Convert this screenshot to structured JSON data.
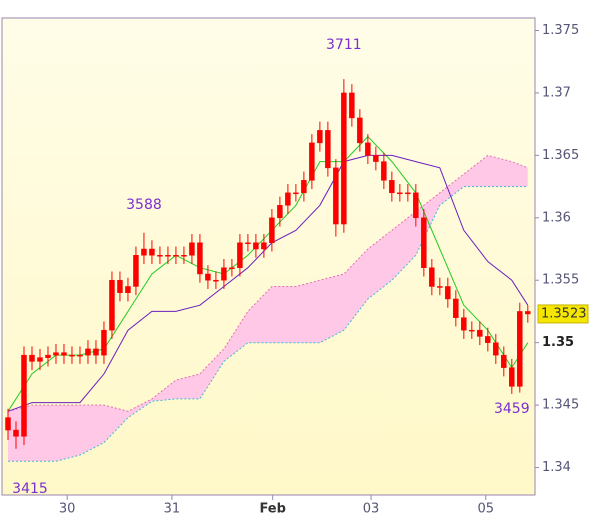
{
  "chart_data": {
    "type": "candlestick",
    "xlim": [
      -0.75,
      65.9
    ],
    "ylim": [
      1.3378,
      1.376
    ],
    "yticks": [
      1.34,
      1.345,
      1.35,
      1.355,
      1.36,
      1.365,
      1.37,
      1.375
    ],
    "bold_ytick": 1.35,
    "xticks": [
      {
        "value": 7.4,
        "label": "30"
      },
      {
        "value": 20.5,
        "label": "31"
      },
      {
        "value": 33.1,
        "label": "Feb"
      },
      {
        "value": 45.4,
        "label": "03"
      },
      {
        "value": 59.75,
        "label": "05"
      }
    ],
    "bold_xtick": "Feb",
    "candle_color": "#ff0000",
    "open": [
      1.344,
      1.343,
      1.3425,
      1.349,
      1.3485,
      1.3488,
      1.349,
      1.3492,
      1.349,
      1.349,
      1.349,
      1.3495,
      1.349,
      1.351,
      1.355,
      1.354,
      1.3545,
      1.357,
      1.3575,
      1.357,
      1.357,
      1.357,
      1.357,
      1.357,
      1.358,
      1.3555,
      1.355,
      1.355,
      1.356,
      1.356,
      1.358,
      1.358,
      1.3575,
      1.358,
      1.36,
      1.361,
      1.362,
      1.362,
      1.363,
      1.366,
      1.367,
      1.364,
      1.3595,
      1.37,
      1.368,
      1.366,
      1.365,
      1.3645,
      1.363,
      1.362,
      1.362,
      1.362,
      1.36,
      1.356,
      1.3545,
      1.3545,
      1.3535,
      1.352,
      1.351,
      1.351,
      1.3505,
      1.35,
      1.349,
      1.348,
      1.3465,
      1.3525
    ],
    "high": [
      1.3447,
      1.3437,
      1.3497,
      1.3497,
      1.3495,
      1.3497,
      1.3499,
      1.3499,
      1.3497,
      1.3497,
      1.3502,
      1.3502,
      1.3517,
      1.3557,
      1.3557,
      1.3552,
      1.3577,
      1.3588,
      1.3582,
      1.3577,
      1.3577,
      1.3577,
      1.3577,
      1.3587,
      1.3587,
      1.3562,
      1.3557,
      1.3567,
      1.3567,
      1.3587,
      1.3587,
      1.3587,
      1.3587,
      1.3607,
      1.3617,
      1.3627,
      1.3627,
      1.3637,
      1.3667,
      1.3677,
      1.3677,
      1.3647,
      1.3711,
      1.3707,
      1.3687,
      1.3667,
      1.3657,
      1.3652,
      1.3637,
      1.3627,
      1.3627,
      1.3627,
      1.3607,
      1.3567,
      1.3552,
      1.3552,
      1.3542,
      1.3527,
      1.3517,
      1.3517,
      1.3512,
      1.3507,
      1.3497,
      1.3487,
      1.3532,
      1.353
    ],
    "low": [
      1.3422,
      1.3415,
      1.3418,
      1.3478,
      1.3478,
      1.3481,
      1.3483,
      1.3483,
      1.3483,
      1.3483,
      1.3483,
      1.3483,
      1.3483,
      1.3503,
      1.3533,
      1.3533,
      1.3538,
      1.3563,
      1.3563,
      1.3563,
      1.3563,
      1.3563,
      1.3563,
      1.3563,
      1.3548,
      1.3543,
      1.3543,
      1.3543,
      1.3553,
      1.3553,
      1.3573,
      1.3568,
      1.3568,
      1.3573,
      1.3593,
      1.3603,
      1.3613,
      1.3613,
      1.3623,
      1.3653,
      1.3633,
      1.3585,
      1.3588,
      1.3673,
      1.3653,
      1.3643,
      1.3638,
      1.3623,
      1.3613,
      1.3613,
      1.3613,
      1.3593,
      1.3553,
      1.3538,
      1.3538,
      1.3528,
      1.3513,
      1.3503,
      1.3503,
      1.3498,
      1.3493,
      1.3483,
      1.3473,
      1.3459,
      1.346,
      1.3516
    ],
    "close": [
      1.343,
      1.3425,
      1.349,
      1.3485,
      1.3488,
      1.349,
      1.3492,
      1.349,
      1.349,
      1.349,
      1.3495,
      1.349,
      1.351,
      1.355,
      1.354,
      1.3545,
      1.357,
      1.3575,
      1.357,
      1.357,
      1.357,
      1.357,
      1.357,
      1.358,
      1.3555,
      1.355,
      1.355,
      1.356,
      1.356,
      1.358,
      1.358,
      1.3575,
      1.358,
      1.36,
      1.361,
      1.362,
      1.362,
      1.363,
      1.366,
      1.367,
      1.364,
      1.3595,
      1.37,
      1.368,
      1.366,
      1.365,
      1.3645,
      1.363,
      1.362,
      1.362,
      1.362,
      1.36,
      1.356,
      1.3545,
      1.3545,
      1.3535,
      1.352,
      1.351,
      1.351,
      1.3505,
      1.35,
      1.349,
      1.348,
      1.3465,
      1.3525,
      1.3523
    ],
    "cloud": {
      "color": "#ffc8e6",
      "upper": {
        "color": "#e070b0",
        "x": [
          0,
          3,
          6,
          9,
          12,
          15,
          18,
          21,
          24,
          27,
          30,
          33,
          36,
          39,
          42,
          45,
          48,
          51,
          54,
          57,
          60,
          63,
          65
        ],
        "values": [
          1.3445,
          1.345,
          1.345,
          1.345,
          1.345,
          1.3445,
          1.3455,
          1.347,
          1.3475,
          1.3495,
          1.3525,
          1.3545,
          1.3545,
          1.355,
          1.3555,
          1.3575,
          1.359,
          1.3605,
          1.362,
          1.3635,
          1.365,
          1.3645,
          1.364
        ]
      },
      "lower": {
        "color": "#40b8d8",
        "x": [
          0,
          3,
          6,
          9,
          12,
          15,
          18,
          21,
          24,
          27,
          30,
          33,
          36,
          39,
          42,
          45,
          48,
          51,
          54,
          57,
          60,
          63,
          65
        ],
        "values": [
          1.3405,
          1.3405,
          1.3405,
          1.341,
          1.342,
          1.344,
          1.3453,
          1.3455,
          1.3455,
          1.3485,
          1.35,
          1.35,
          1.35,
          1.35,
          1.351,
          1.3535,
          1.355,
          1.357,
          1.361,
          1.3625,
          1.3625,
          1.3625,
          1.3625
        ]
      }
    },
    "lines": [
      {
        "color": "#22cc22",
        "x": [
          0,
          3,
          6,
          9,
          12,
          15,
          18,
          21,
          24,
          27,
          30,
          33,
          36,
          39,
          42,
          45,
          48,
          51,
          54,
          57,
          60,
          63,
          65
        ],
        "values": [
          1.3445,
          1.3475,
          1.349,
          1.349,
          1.3495,
          1.3525,
          1.3555,
          1.357,
          1.356,
          1.3555,
          1.357,
          1.359,
          1.361,
          1.3645,
          1.3645,
          1.3665,
          1.3645,
          1.362,
          1.3575,
          1.353,
          1.351,
          1.348,
          1.35
        ]
      },
      {
        "color": "#6a1fc0",
        "x": [
          0,
          3,
          6,
          9,
          12,
          15,
          18,
          21,
          24,
          27,
          30,
          33,
          36,
          39,
          42,
          45,
          48,
          51,
          54,
          57,
          60,
          63,
          65
        ],
        "values": [
          1.3445,
          1.3452,
          1.3452,
          1.3452,
          1.3475,
          1.351,
          1.3525,
          1.3525,
          1.353,
          1.3545,
          1.356,
          1.358,
          1.359,
          1.361,
          1.3645,
          1.365,
          1.365,
          1.3645,
          1.364,
          1.359,
          1.3565,
          1.355,
          1.353
        ]
      }
    ],
    "last_price": 1.3523,
    "annotations": [
      {
        "text": "3415",
        "x": 1,
        "y": 1.3415
      },
      {
        "text": "3588",
        "x": 17,
        "y": 1.3588
      },
      {
        "text": "3711",
        "x": 42,
        "y": 1.3711
      },
      {
        "text": "3459",
        "x": 63,
        "y": 1.3459
      }
    ]
  }
}
